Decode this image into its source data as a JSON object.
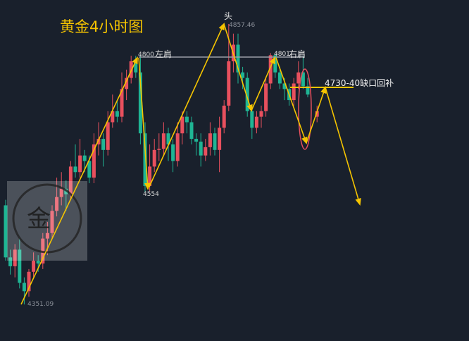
{
  "chart_data": {
    "type": "candlestick",
    "title": "黄金4小时图",
    "colors": {
      "up": "#e8505e",
      "down": "#1fb594",
      "arrow": "#f5c400",
      "neckline": "#9a9ea6",
      "gap_line": "#f5c400",
      "ellipse": "#e8505e",
      "background": "#19202c",
      "title": "#f5c400"
    },
    "grid": false,
    "candles": [
      [
        4530,
        4436,
        4540,
        4430
      ],
      [
        4436,
        4420,
        4450,
        4405
      ],
      [
        4420,
        4450,
        4460,
        4400
      ],
      [
        4450,
        4390,
        4470,
        4380
      ],
      [
        4390,
        4375,
        4400,
        4351
      ],
      [
        4375,
        4410,
        4415,
        4365
      ],
      [
        4410,
        4430,
        4445,
        4400
      ],
      [
        4430,
        4425,
        4440,
        4410
      ],
      [
        4425,
        4470,
        4480,
        4415
      ],
      [
        4470,
        4480,
        4500,
        4440
      ],
      [
        4480,
        4520,
        4530,
        4470
      ],
      [
        4520,
        4545,
        4580,
        4510
      ],
      [
        4545,
        4560,
        4590,
        4530
      ],
      [
        4560,
        4550,
        4575,
        4520
      ],
      [
        4550,
        4600,
        4610,
        4540
      ],
      [
        4600,
        4590,
        4640,
        4580
      ],
      [
        4590,
        4620,
        4650,
        4580
      ],
      [
        4620,
        4610,
        4630,
        4590
      ],
      [
        4610,
        4580,
        4620,
        4570
      ],
      [
        4580,
        4640,
        4660,
        4570
      ],
      [
        4640,
        4650,
        4680,
        4620
      ],
      [
        4650,
        4630,
        4660,
        4600
      ],
      [
        4630,
        4680,
        4700,
        4620
      ],
      [
        4680,
        4700,
        4730,
        4670
      ],
      [
        4700,
        4690,
        4720,
        4680
      ],
      [
        4690,
        4740,
        4770,
        4680
      ],
      [
        4740,
        4760,
        4775,
        4720
      ],
      [
        4760,
        4790,
        4800,
        4750
      ],
      [
        4790,
        4770,
        4800,
        4760
      ],
      [
        4770,
        4660,
        4800,
        4640
      ],
      [
        4660,
        4565,
        4680,
        4554
      ],
      [
        4565,
        4600,
        4640,
        4555
      ],
      [
        4600,
        4630,
        4650,
        4590
      ],
      [
        4630,
        4632,
        4660,
        4610
      ],
      [
        4632,
        4660,
        4680,
        4620
      ],
      [
        4660,
        4640,
        4670,
        4610
      ],
      [
        4640,
        4610,
        4650,
        4590
      ],
      [
        4610,
        4660,
        4680,
        4600
      ],
      [
        4660,
        4690,
        4700,
        4640
      ],
      [
        4690,
        4680,
        4700,
        4660
      ],
      [
        4680,
        4650,
        4690,
        4640
      ],
      [
        4650,
        4645,
        4660,
        4620
      ],
      [
        4645,
        4620,
        4660,
        4600
      ],
      [
        4620,
        4635,
        4650,
        4610
      ],
      [
        4635,
        4660,
        4680,
        4620
      ],
      [
        4660,
        4630,
        4670,
        4620
      ],
      [
        4630,
        4670,
        4690,
        4590
      ],
      [
        4670,
        4710,
        4720,
        4660
      ],
      [
        4710,
        4790,
        4857.46,
        4700
      ],
      [
        4790,
        4820,
        4840,
        4770
      ],
      [
        4820,
        4770,
        4840,
        4750
      ],
      [
        4770,
        4760,
        4780,
        4740
      ],
      [
        4760,
        4700,
        4770,
        4690
      ],
      [
        4700,
        4670,
        4710,
        4650
      ],
      [
        4670,
        4690,
        4700,
        4660
      ],
      [
        4690,
        4700,
        4710,
        4670
      ],
      [
        4700,
        4750,
        4760,
        4690
      ],
      [
        4750,
        4801,
        4805,
        4740
      ],
      [
        4801,
        4770,
        4802,
        4760
      ],
      [
        4770,
        4750,
        4780,
        4740
      ],
      [
        4750,
        4740,
        4760,
        4720
      ],
      [
        4740,
        4720,
        4750,
        4710
      ],
      [
        4720,
        4750,
        4760,
        4710
      ],
      [
        4750,
        4770,
        4790,
        4740
      ],
      [
        4770,
        4745,
        4800,
        4740
      ],
      [
        4745,
        4730,
        4760,
        4725
      ],
      null,
      [
        4690,
        4700,
        4710,
        4680
      ]
    ],
    "annotations": {
      "head_label": "头",
      "head_price": "4857.46",
      "left_shoulder_price": "4800",
      "left_shoulder_label": "左肩",
      "right_shoulder_price": "4801",
      "right_shoulder_label": "右肩",
      "low1": "4554",
      "low0": "4351.09",
      "gap_fill": "4730-40缺口回补"
    },
    "watermark": "金"
  }
}
